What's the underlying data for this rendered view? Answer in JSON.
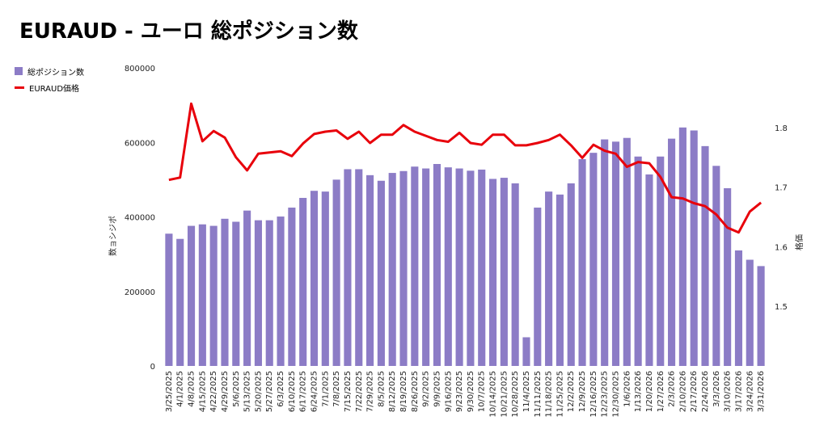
{
  "chart_data": {
    "type": "bar",
    "title": "EURAUD - ユーロ 総ポジション数",
    "ylabel": "数ョシジポ",
    "y2label": "格価",
    "ylim": [
      0,
      800000
    ],
    "y2lim": [
      1.4,
      1.9
    ],
    "yticks": [
      "800000",
      "600000",
      "400000",
      "200000",
      "0"
    ],
    "y2ticks": [
      "1.8",
      "1.7",
      "1.6",
      "1.5"
    ],
    "legend_position": "top-left",
    "colors": {
      "bar": "#8c7cc6",
      "line": "#e8000b"
    },
    "categories": [
      "3/25/2025",
      "4/1/2025",
      "4/8/2025",
      "4/15/2025",
      "4/22/2025",
      "4/29/2025",
      "5/6/2025",
      "5/13/2025",
      "5/20/2025",
      "5/27/2025",
      "6/3/2025",
      "6/10/2025",
      "6/17/2025",
      "6/24/2025",
      "7/1/2025",
      "7/8/2025",
      "7/15/2025",
      "7/22/2025",
      "7/29/2025",
      "8/5/2025",
      "8/12/2025",
      "8/19/2025",
      "8/26/2025",
      "9/2/2025",
      "9/9/2025",
      "9/16/2025",
      "9/23/2025",
      "9/30/2025",
      "10/7/2025",
      "10/14/2025",
      "10/21/2025",
      "10/28/2025",
      "11/4/2025",
      "11/11/2025",
      "11/18/2025",
      "11/25/2025",
      "12/2/2025",
      "12/9/2025",
      "12/16/2025",
      "12/23/2025",
      "12/30/2025",
      "1/6/2026",
      "1/13/2026",
      "1/20/2026",
      "1/27/2026",
      "2/3/2026",
      "2/10/2026",
      "2/17/2026",
      "2/24/2026",
      "3/3/2026",
      "3/10/2026",
      "3/17/2026",
      "3/24/2026",
      "3/31/2026"
    ],
    "series": [
      {
        "name": "総ポジション数",
        "type": "bar",
        "values": [
          355000,
          341000,
          376000,
          380000,
          376000,
          395000,
          387000,
          417000,
          391000,
          391000,
          401000,
          425000,
          451000,
          470000,
          468000,
          500000,
          528000,
          528000,
          512000,
          497000,
          518000,
          523000,
          535000,
          530000,
          542000,
          533000,
          530000,
          524000,
          527000,
          502000,
          505000,
          490000,
          77000,
          425000,
          468000,
          460000,
          490000,
          555000,
          572000,
          608000,
          602000,
          612000,
          562000,
          514000,
          562000,
          610000,
          640000,
          632000,
          590000,
          537000,
          477000,
          310000,
          285000,
          268000
        ]
      },
      {
        "name": "EURAUD価格",
        "type": "line",
        "axis": "right",
        "values": [
          1.712,
          1.716,
          1.84,
          1.777,
          1.794,
          1.783,
          1.75,
          1.728,
          1.756,
          1.758,
          1.76,
          1.752,
          1.773,
          1.789,
          1.793,
          1.795,
          1.781,
          1.793,
          1.774,
          1.788,
          1.788,
          1.804,
          1.793,
          1.786,
          1.779,
          1.776,
          1.791,
          1.774,
          1.771,
          1.788,
          1.788,
          1.77,
          1.77,
          1.774,
          1.779,
          1.788,
          1.77,
          1.749,
          1.771,
          1.761,
          1.756,
          1.734,
          1.742,
          1.74,
          1.717,
          1.683,
          1.681,
          1.673,
          1.668,
          1.654,
          1.632,
          1.624,
          1.659,
          1.674
        ]
      }
    ]
  }
}
